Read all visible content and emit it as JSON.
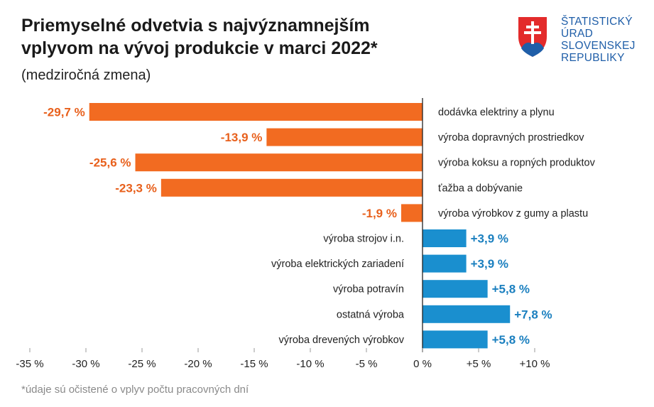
{
  "header": {
    "title_line1": "Priemyselné odvetvia s najvýznamnejším",
    "title_line2": "vplyvom na vývoj produkcie v marci 2022*",
    "subtitle": "(medziročná zmena)"
  },
  "logo": {
    "lines": [
      "ŠTATISTICKÝ",
      "ÚRAD",
      "SLOVENSKEJ",
      "REPUBLIKY"
    ]
  },
  "footnote": "*údaje sú očistené o vplyv počtu pracovných dní",
  "colors": {
    "negative": "#f26b21",
    "positive": "#1a8fcf",
    "negative_label": "#e8601c",
    "positive_label": "#1a7fbf"
  },
  "chart_data": {
    "type": "bar",
    "orientation": "horizontal",
    "categories": [
      "dodávka elektriny a plynu",
      "výroba dopravných prostriedkov",
      "výroba koksu a ropných produktov",
      "ťažba a dobývanie",
      "výroba výrobkov z gumy a plastu",
      "výroba strojov i.n.",
      "výroba elektrických zariadení",
      "výroba potravín",
      "ostatná výroba",
      "výroba drevených výrobkov"
    ],
    "values": [
      -29.7,
      -13.9,
      -25.6,
      -23.3,
      -1.9,
      3.9,
      3.9,
      5.8,
      7.8,
      5.8
    ],
    "data_labels": [
      "-29,7 %",
      "-13,9 %",
      "-25,6 %",
      "-23,3 %",
      "-1,9 %",
      "+3,9 %",
      "+3,9 %",
      "+5,8 %",
      "+7,8 %",
      "+5,8 %"
    ],
    "xlim": [
      -35,
      10
    ],
    "xticks": [
      -35,
      -30,
      -25,
      -20,
      -15,
      -10,
      -5,
      0,
      5,
      10
    ],
    "xtick_labels": [
      "-35 %",
      "-30 %",
      "-25 %",
      "-20 %",
      "-15 %",
      "-10 %",
      "-5 %",
      "0 %",
      "+5 %",
      "+10 %"
    ],
    "grid": false
  }
}
